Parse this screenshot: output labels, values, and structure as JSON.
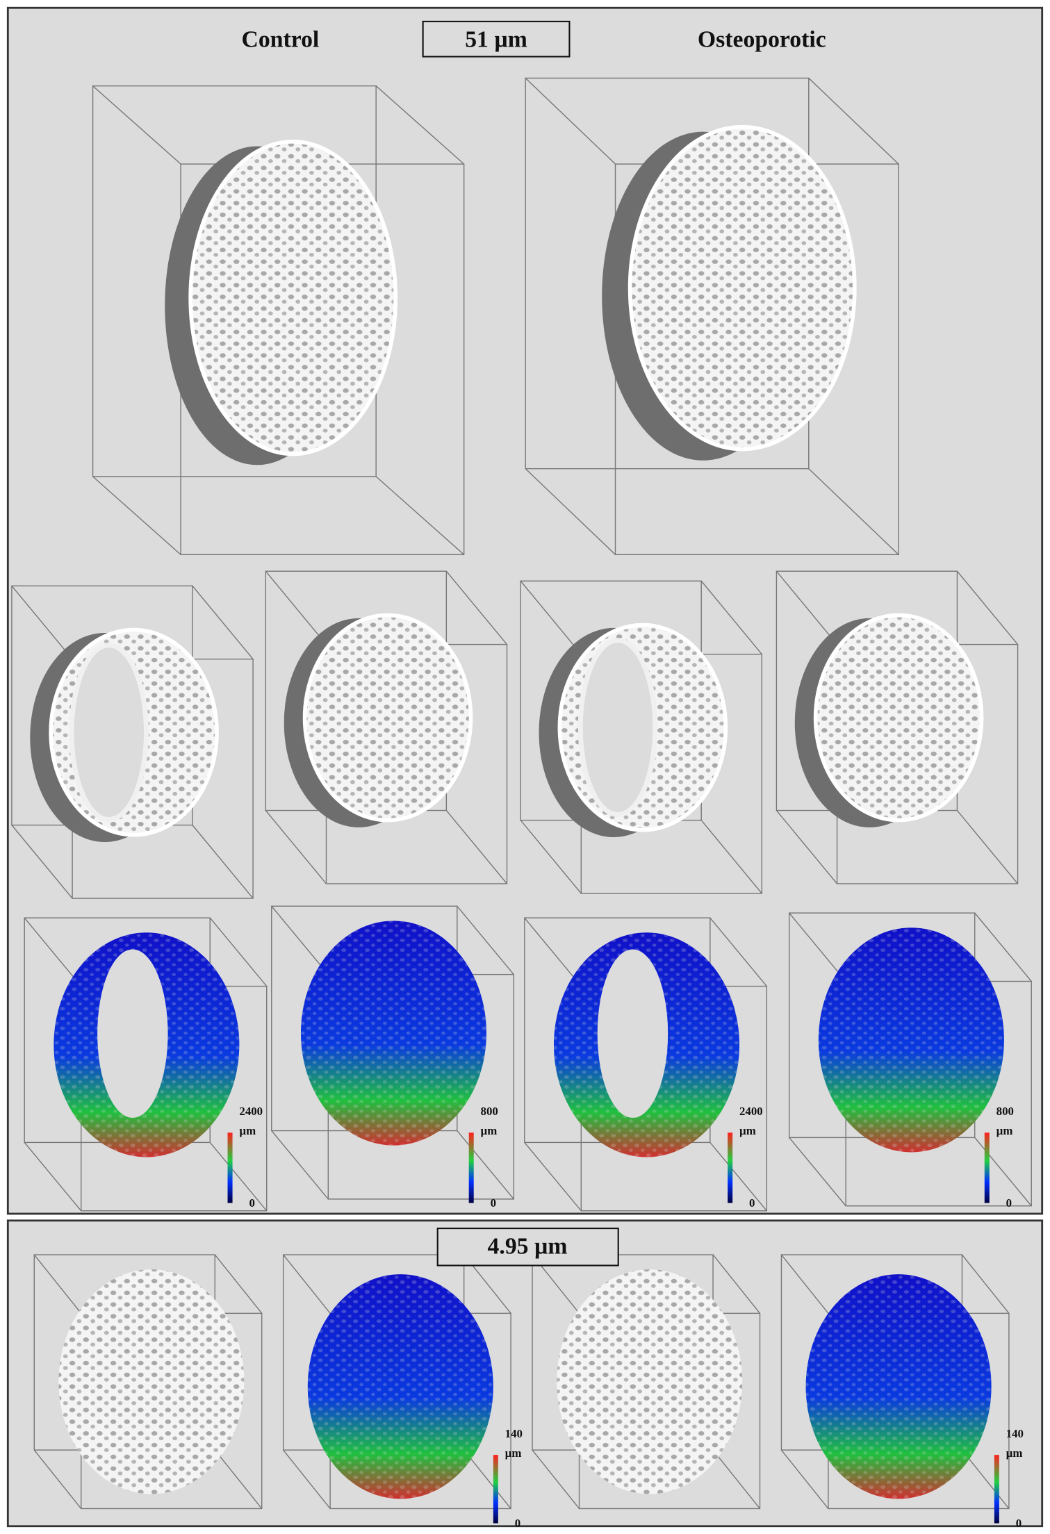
{
  "top_panel": {
    "left_label": "Control",
    "scale_label": "51 µm",
    "right_label": "Osteoporotic",
    "colorbars": [
      {
        "max": 2400,
        "unit": "µm",
        "min": 0
      },
      {
        "max": 800,
        "unit": "µm",
        "min": 0
      },
      {
        "max": 2400,
        "unit": "µm",
        "min": 0
      },
      {
        "max": 800,
        "unit": "µm",
        "min": 0
      }
    ]
  },
  "bottom_panel": {
    "scale_label": "4.95 µm",
    "colorbars": [
      {
        "max": 140,
        "unit": "µm",
        "min": 0
      },
      {
        "max": 140,
        "unit": "µm",
        "min": 0
      }
    ]
  }
}
